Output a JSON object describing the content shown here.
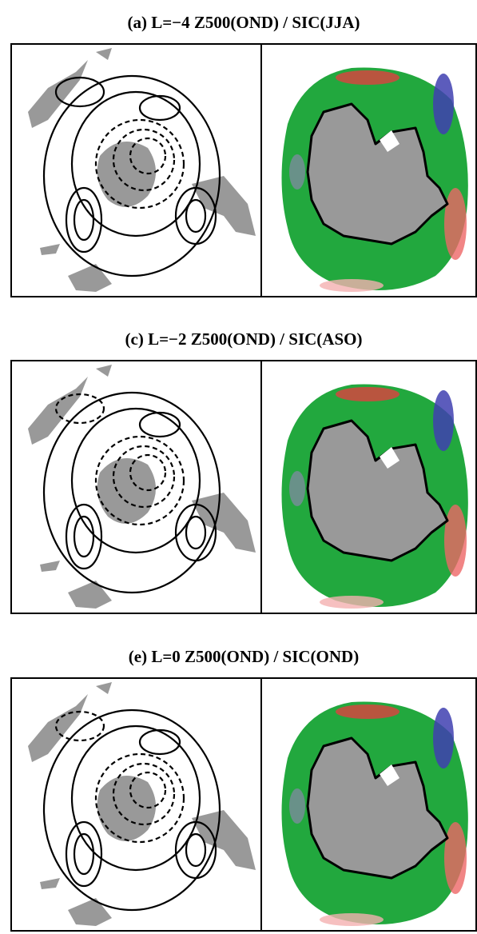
{
  "panels": [
    {
      "title": "(a) L=−4 Z500(OND) / SIC(JJA)"
    },
    {
      "title": "(c) L=−2 Z500(OND) / SIC(ASO)"
    },
    {
      "title": "(e) L=0 Z500(OND) / SIC(OND)"
    }
  ]
}
